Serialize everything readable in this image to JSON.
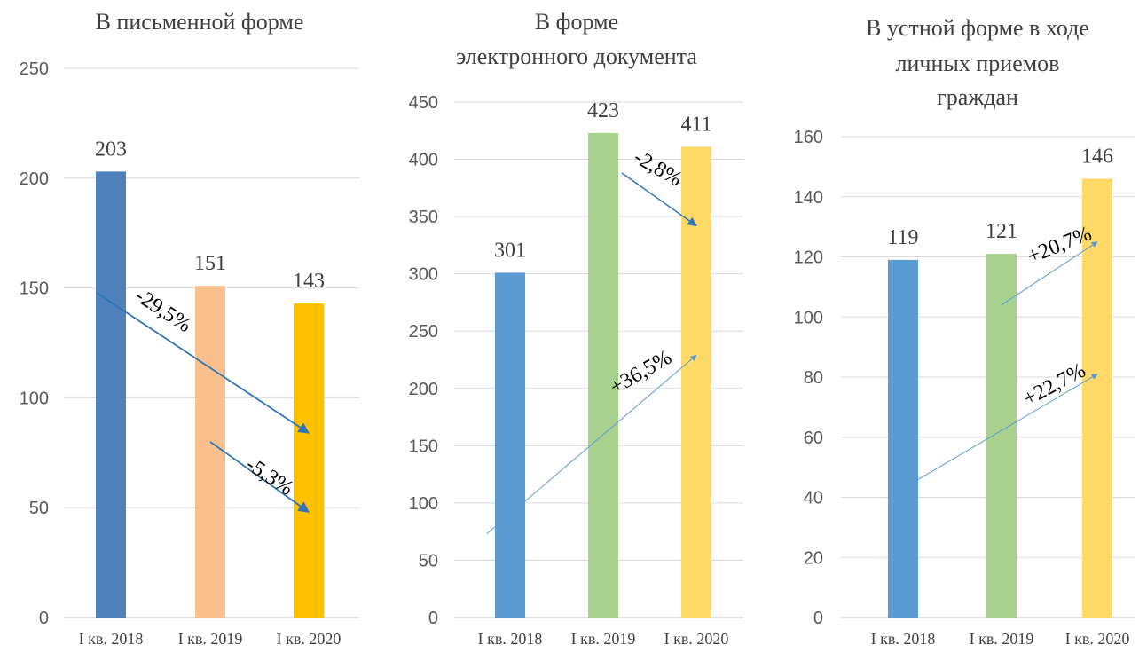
{
  "chart_data": [
    {
      "type": "bar",
      "title": "В письменной форме",
      "categories": [
        "I кв. 2018",
        "I кв. 2019",
        "I кв. 2020"
      ],
      "values": [
        203,
        151,
        143
      ],
      "colors": [
        "#4F81BD",
        "#F9C08E",
        "#FFC000"
      ],
      "yticks": [
        0,
        50,
        100,
        150,
        200,
        250
      ],
      "ylim": [
        0,
        250
      ],
      "grid": true,
      "annotations": [
        {
          "text": "-29,5%",
          "color": "#2E75B6"
        },
        {
          "text": "-5,3%",
          "color": "#2E75B6"
        }
      ]
    },
    {
      "type": "bar",
      "title": "В форме электронного документа",
      "categories": [
        "I кв. 2018",
        "I кв. 2019",
        "I кв. 2020"
      ],
      "values": [
        301,
        423,
        411
      ],
      "colors": [
        "#5B9BD5",
        "#A9D18E",
        "#FFD966"
      ],
      "yticks": [
        0,
        50,
        100,
        150,
        200,
        250,
        300,
        350,
        400,
        450
      ],
      "ylim": [
        0,
        450
      ],
      "grid": true,
      "annotations": [
        {
          "text": "-2,8%",
          "color": "#2E75B6"
        },
        {
          "text": "+36,5%",
          "color": "#5B9BD5"
        }
      ]
    },
    {
      "type": "bar",
      "title": "В устной форме в ходе личных приемов граждан",
      "categories": [
        "I кв. 2018",
        "I кв. 2019",
        "I кв. 2020"
      ],
      "values": [
        119,
        121,
        146
      ],
      "colors": [
        "#5B9BD5",
        "#A9D18E",
        "#FFD966"
      ],
      "yticks": [
        0,
        20,
        40,
        60,
        80,
        100,
        120,
        140,
        160
      ],
      "ylim": [
        0,
        160
      ],
      "grid": true,
      "annotations": [
        {
          "text": "+20,7%",
          "color": "#5B9BD5"
        },
        {
          "text": "+22,7%",
          "color": "#5B9BD5"
        }
      ]
    }
  ]
}
